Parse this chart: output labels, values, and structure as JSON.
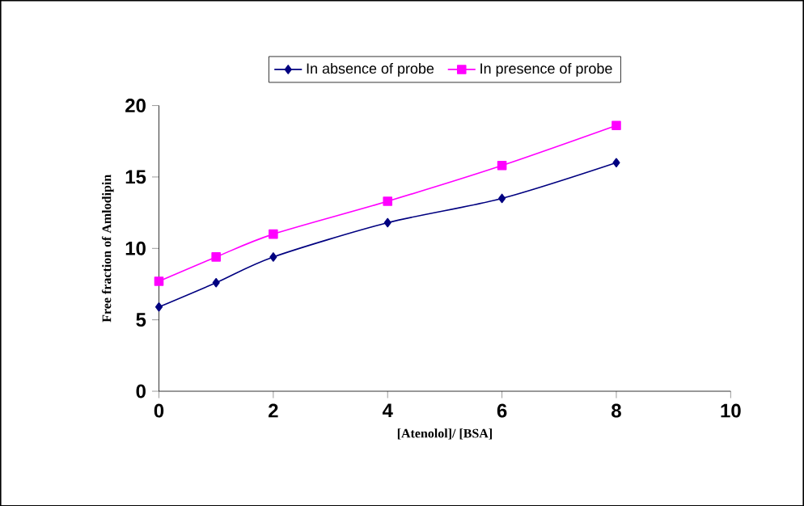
{
  "chart_data": {
    "type": "line",
    "xlabel": "[Atenolol]/ [BSA]",
    "ylabel": "Free fraction of Amlodipin",
    "x": [
      0,
      1,
      2,
      4,
      6,
      8
    ],
    "xlim": [
      0,
      10
    ],
    "xticks": [
      0,
      2,
      4,
      6,
      8,
      10
    ],
    "ylim": [
      0,
      20
    ],
    "yticks": [
      0,
      5,
      10,
      15,
      20
    ],
    "legend": "top",
    "grid": false,
    "series": [
      {
        "name": "In absence of probe",
        "color": "#000080",
        "marker": "diamond",
        "values": [
          5.9,
          7.6,
          9.4,
          11.8,
          13.5,
          16.0
        ]
      },
      {
        "name": "In presence of probe",
        "color": "#ff00ff",
        "marker": "square",
        "values": [
          7.7,
          9.4,
          11.0,
          13.3,
          15.8,
          18.6
        ]
      }
    ]
  }
}
